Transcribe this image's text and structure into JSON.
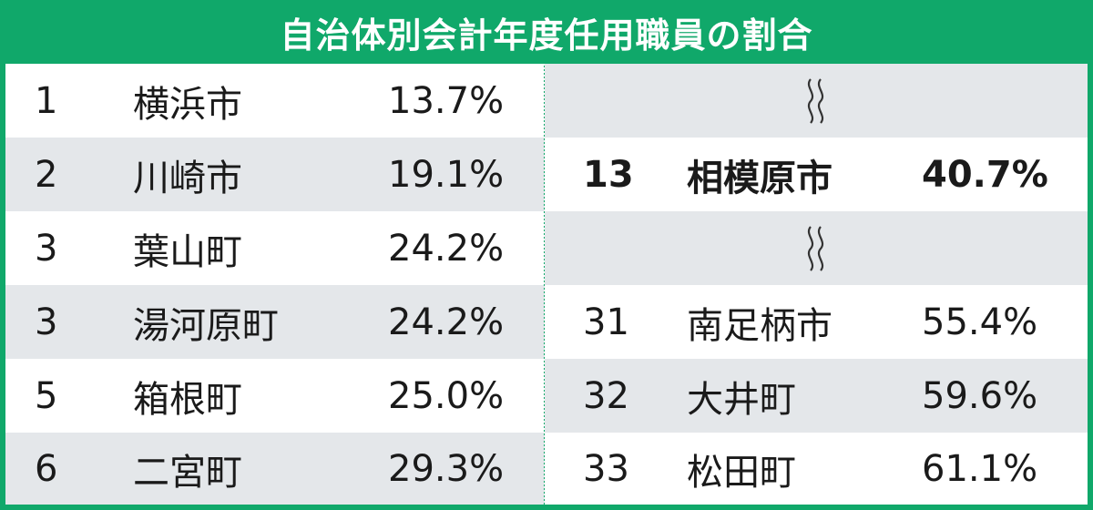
{
  "chart_data": {
    "type": "table",
    "title": "自治体別会計年度任用職員の割合",
    "left_rows": [
      {
        "rank": "1",
        "name": "横浜市",
        "value": "13.7%"
      },
      {
        "rank": "2",
        "name": "川崎市",
        "value": "19.1%"
      },
      {
        "rank": "3",
        "name": "葉山町",
        "value": "24.2%"
      },
      {
        "rank": "3",
        "name": "湯河原町",
        "value": "24.2%"
      },
      {
        "rank": "5",
        "name": "箱根町",
        "value": "25.0%"
      },
      {
        "rank": "6",
        "name": "二宮町",
        "value": "29.3%"
      }
    ],
    "right_rows": [
      {
        "rank": "13",
        "name": "相模原市",
        "value": "40.7%",
        "highlight": true
      },
      {
        "rank": "31",
        "name": "南足柄市",
        "value": "55.4%"
      },
      {
        "rank": "32",
        "name": "大井町",
        "value": "59.6%"
      },
      {
        "rank": "33",
        "name": "松田町",
        "value": "61.1%"
      }
    ]
  },
  "colors": {
    "header_green": "#10a86a",
    "row_shade": "#e4e7ea",
    "text": "#1a1a1a"
  },
  "icons": {
    "gap_marker": "omission-wave-icon"
  }
}
